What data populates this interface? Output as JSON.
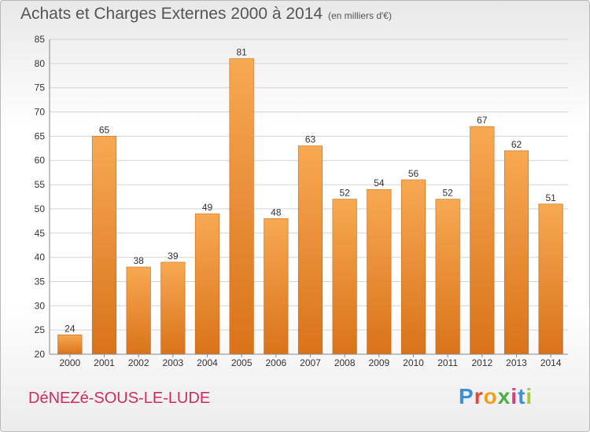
{
  "header": {
    "title": "Achats et Charges Externes 2000 à 2014",
    "unit": "(en milliers d'€)"
  },
  "footer": {
    "commune": "DéNEZé-SOUS-LE-LUDE",
    "logo": "Proxiti"
  },
  "colors": {
    "bar_light": "#f7a952",
    "bar_dark": "#d9731a",
    "commune_text": "#cf2c5e"
  },
  "chart_data": {
    "type": "bar",
    "title": "Achats et Charges Externes 2000 à 2014",
    "subtitle": "(en milliers d'€)",
    "categories": [
      "2000",
      "2001",
      "2002",
      "2003",
      "2004",
      "2005",
      "2006",
      "2007",
      "2008",
      "2009",
      "2010",
      "2011",
      "2012",
      "2013",
      "2014"
    ],
    "values": [
      24,
      65,
      38,
      39,
      49,
      81,
      48,
      63,
      52,
      54,
      56,
      52,
      67,
      62,
      51
    ],
    "ylim": [
      20,
      85
    ],
    "yticks": [
      20,
      25,
      30,
      35,
      40,
      45,
      50,
      55,
      60,
      65,
      70,
      75,
      80,
      85
    ],
    "grid": true,
    "data_labels": true
  }
}
